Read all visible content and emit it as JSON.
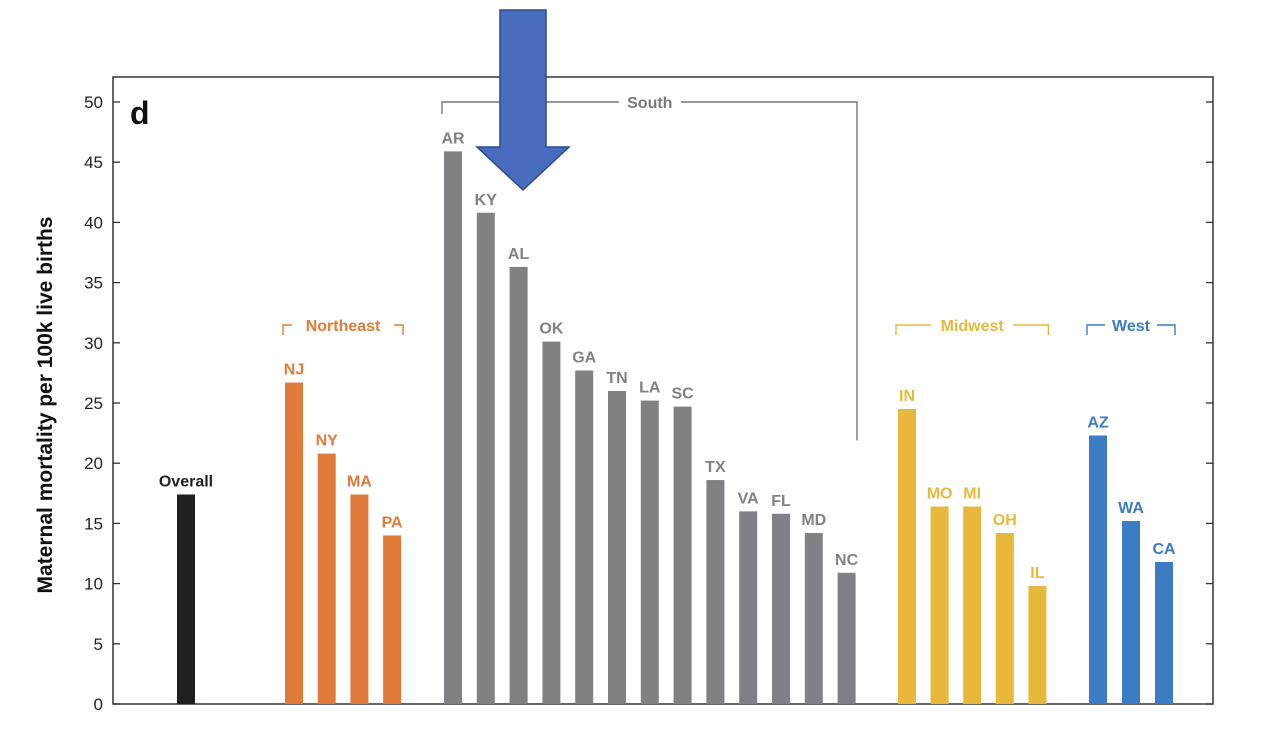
{
  "chart_data": {
    "type": "bar",
    "panel_label": "d",
    "ylabel": "Maternal mortality per 100k live births",
    "xlabel": "",
    "ylim": [
      0,
      50
    ],
    "yticks": [
      "0",
      "5",
      "10",
      "15",
      "20",
      "25",
      "30",
      "35",
      "40",
      "45",
      "50"
    ],
    "colors": {
      "Overall": "#231f20",
      "Northeast": "#e07b39",
      "South": "#808184",
      "Midwest": "#e8b83d",
      "West": "#3b7cc4",
      "arrow": "#4a6cbf"
    },
    "groups": [
      {
        "name": "Overall",
        "label": "",
        "categories": [
          "Overall"
        ],
        "values": [
          17.4
        ]
      },
      {
        "name": "Northeast",
        "label": "Northeast",
        "categories": [
          "NJ",
          "NY",
          "MA",
          "PA"
        ],
        "values": [
          26.7,
          20.8,
          17.4,
          14.0
        ]
      },
      {
        "name": "South",
        "label": "South",
        "categories": [
          "AR",
          "KY",
          "AL",
          "OK",
          "GA",
          "TN",
          "LA",
          "SC",
          "TX",
          "VA",
          "FL",
          "MD",
          "NC"
        ],
        "values": [
          45.9,
          40.8,
          36.3,
          30.1,
          27.7,
          26.0,
          25.2,
          24.7,
          18.6,
          16.0,
          15.8,
          14.2,
          10.9
        ]
      },
      {
        "name": "Midwest",
        "label": "Midwest",
        "categories": [
          "IN",
          "MO",
          "MI",
          "OH",
          "IL"
        ],
        "values": [
          24.5,
          16.4,
          16.4,
          14.2,
          9.8
        ]
      },
      {
        "name": "West",
        "label": "West",
        "categories": [
          "AZ",
          "WA",
          "CA"
        ],
        "values": [
          22.3,
          15.2,
          11.8
        ]
      }
    ],
    "annotation_arrow_target": "KY"
  }
}
